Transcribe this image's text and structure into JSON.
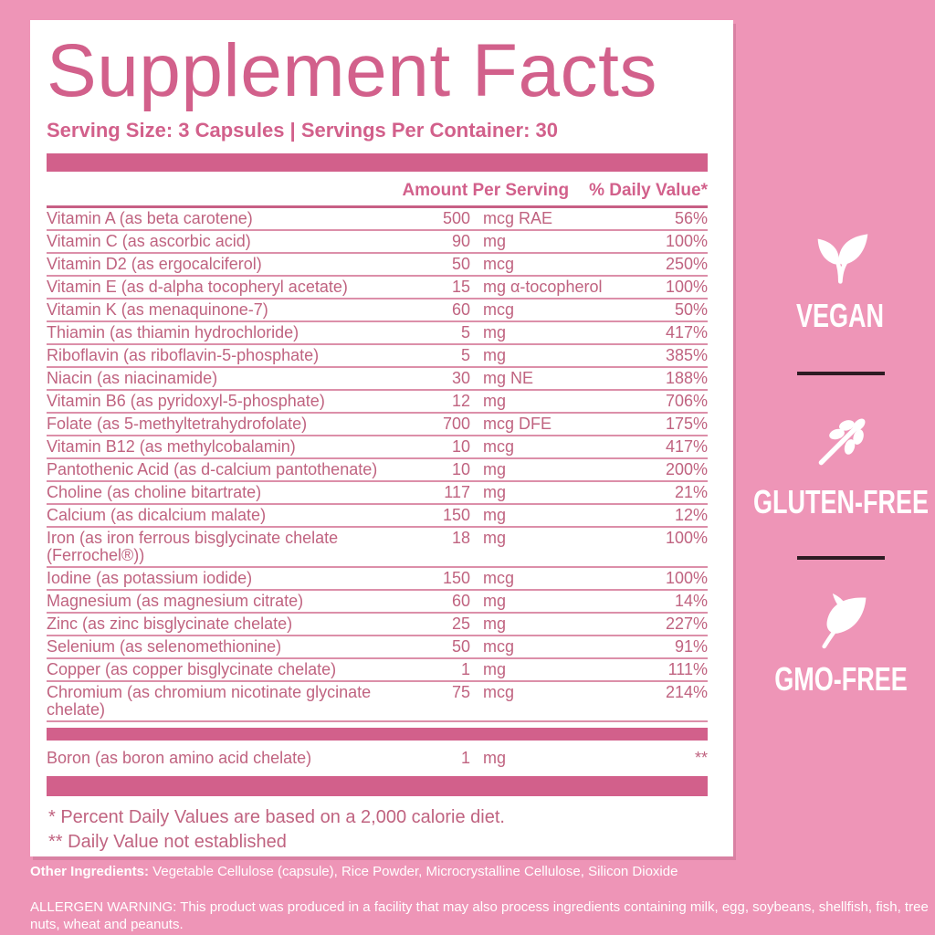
{
  "label": {
    "title": "Supplement Facts",
    "serving_line": "Serving Size: 3 Capsules | Servings Per Container: 30",
    "columns": {
      "amount": "Amount Per Serving",
      "daily_value": "% Daily Value*"
    },
    "rows": [
      {
        "name": "Vitamin A (as beta carotene)",
        "amount": "500",
        "unit": "mcg RAE",
        "dv": "56%"
      },
      {
        "name": "Vitamin C (as ascorbic acid)",
        "amount": "90",
        "unit": "mg",
        "dv": "100%"
      },
      {
        "name": "Vitamin D2 (as ergocalciferol)",
        "amount": "50",
        "unit": "mcg",
        "dv": "250%"
      },
      {
        "name": "Vitamin E (as d-alpha tocopheryl acetate)",
        "amount": "15",
        "unit": "mg α-tocopherol",
        "dv": "100%"
      },
      {
        "name": "Vitamin K (as menaquinone-7)",
        "amount": "60",
        "unit": "mcg",
        "dv": "50%"
      },
      {
        "name": "Thiamin (as thiamin hydrochloride)",
        "amount": "5",
        "unit": "mg",
        "dv": "417%"
      },
      {
        "name": "Riboflavin (as riboflavin-5-phosphate)",
        "amount": "5",
        "unit": "mg",
        "dv": "385%"
      },
      {
        "name": "Niacin (as niacinamide)",
        "amount": "30",
        "unit": "mg NE",
        "dv": "188%"
      },
      {
        "name": "Vitamin B6 (as pyridoxyl-5-phosphate)",
        "amount": "12",
        "unit": "mg",
        "dv": "706%"
      },
      {
        "name": "Folate (as 5-methyltetrahydrofolate)",
        "amount": "700",
        "unit": "mcg DFE",
        "dv": "175%"
      },
      {
        "name": "Vitamin B12 (as methylcobalamin)",
        "amount": "10",
        "unit": "mcg",
        "dv": "417%"
      },
      {
        "name": "Pantothenic Acid (as d-calcium pantothenate)",
        "amount": "10",
        "unit": "mg",
        "dv": "200%"
      },
      {
        "name": "Choline (as choline bitartrate)",
        "amount": "117",
        "unit": "mg",
        "dv": "21%"
      },
      {
        "name": "Calcium (as dicalcium malate)",
        "amount": "150",
        "unit": "mg",
        "dv": "12%"
      },
      {
        "name": "Iron (as iron ferrous bisglycinate chelate (Ferrochel®))",
        "amount": "18",
        "unit": "mg",
        "dv": "100%"
      },
      {
        "name": "Iodine (as potassium iodide)",
        "amount": "150",
        "unit": "mcg",
        "dv": "100%"
      },
      {
        "name": "Magnesium (as magnesium citrate)",
        "amount": "60",
        "unit": "mg",
        "dv": "14%"
      },
      {
        "name": "Zinc (as zinc bisglycinate chelate)",
        "amount": "25",
        "unit": "mg",
        "dv": "227%"
      },
      {
        "name": "Selenium (as selenomethionine)",
        "amount": "50",
        "unit": "mcg",
        "dv": "91%"
      },
      {
        "name": "Copper (as copper bisglycinate chelate)",
        "amount": "1",
        "unit": "mg",
        "dv": "111%"
      },
      {
        "name": "Chromium (as chromium nicotinate glycinate chelate)",
        "amount": "75",
        "unit": "mcg",
        "dv": "214%"
      }
    ],
    "boron": {
      "name": "Boron (as boron amino acid chelate)",
      "amount": "1",
      "unit": "mg",
      "dv": "**"
    },
    "footnote_dv": "* Percent Daily Values are based on a 2,000 calorie diet.",
    "footnote_not_established": "** Daily Value not established"
  },
  "footer": {
    "other_ingredients_label": "Other Ingredients:",
    "other_ingredients_text": " Vegetable Cellulose (capsule), Rice Powder, Microcrystalline Cellulose, Silicon Dioxide",
    "allergen_warning": "ALLERGEN WARNING: This product was produced in a facility that may also process ingredients containing milk, egg, soybeans, shellfish, fish, tree nuts, wheat and peanuts."
  },
  "badges": [
    {
      "icon": "vegan-leaves-icon",
      "label": "VEGAN"
    },
    {
      "icon": "wheat-icon",
      "label": "GLUTEN-FREE"
    },
    {
      "icon": "leaf-icon",
      "label": "GMO-FREE"
    }
  ],
  "colors": {
    "bg": "#ee95b7",
    "accent": "#d2608b",
    "rowtext": "#c06380",
    "rowline": "#dc8fa9",
    "headline": "#c75f85",
    "badgediv": "#2d1b23",
    "white": "#ffffff"
  }
}
